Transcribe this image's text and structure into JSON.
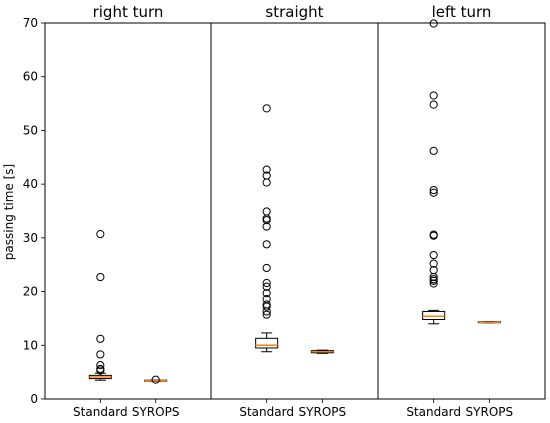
{
  "chart_data": {
    "type": "box",
    "ylabel": "passing time [s]",
    "ylim": [
      0,
      70
    ],
    "yticks": [
      0,
      10,
      20,
      30,
      40,
      50,
      60,
      70
    ],
    "median_color": "#ff7f0e",
    "box_color": "#000000",
    "shared_y": true,
    "panels": [
      {
        "title": "right turn",
        "categories": [
          "Standard",
          "SYROPS"
        ],
        "boxes": [
          {
            "label": "Standard",
            "whisker_low": 3.5,
            "q1": 3.8,
            "median": 4.1,
            "q3": 4.4,
            "whisker_high": 4.8,
            "fliers": [
              5.3,
              5.6,
              6.3,
              8.3,
              11.2,
              22.7,
              30.7
            ]
          },
          {
            "label": "SYROPS",
            "whisker_low": 3.3,
            "q1": 3.3,
            "median": 3.4,
            "q3": 3.5,
            "whisker_high": 3.5,
            "fliers": [
              3.6
            ]
          }
        ]
      },
      {
        "title": "straight",
        "categories": [
          "Standard",
          "SYROPS"
        ],
        "boxes": [
          {
            "label": "Standard",
            "whisker_low": 8.8,
            "q1": 9.5,
            "median": 10.0,
            "q3": 11.3,
            "whisker_high": 12.3,
            "fliers": [
              15.7,
              16.3,
              17.2,
              17.6,
              18.6,
              19.7,
              20.9,
              21.6,
              24.4,
              28.8,
              32.1,
              33.3,
              33.6,
              34.9,
              40.3,
              41.6,
              42.7,
              54.1
            ]
          },
          {
            "label": "SYROPS",
            "whisker_low": 8.5,
            "q1": 8.6,
            "median": 8.8,
            "q3": 9.0,
            "whisker_high": 9.1,
            "fliers": []
          }
        ]
      },
      {
        "title": "left turn",
        "categories": [
          "Standard",
          "SYROPS"
        ],
        "boxes": [
          {
            "label": "Standard",
            "whisker_low": 14.0,
            "q1": 14.8,
            "median": 15.4,
            "q3": 16.3,
            "whisker_high": 16.5,
            "fliers": [
              21.5,
              22.0,
              22.3,
              22.7,
              24.0,
              25.2,
              26.8,
              30.4,
              30.6,
              38.4,
              38.9,
              46.2,
              54.8,
              56.5,
              69.9
            ]
          },
          {
            "label": "SYROPS",
            "whisker_low": 14.2,
            "q1": 14.2,
            "median": 14.3,
            "q3": 14.4,
            "whisker_high": 14.4,
            "fliers": []
          }
        ]
      }
    ]
  }
}
